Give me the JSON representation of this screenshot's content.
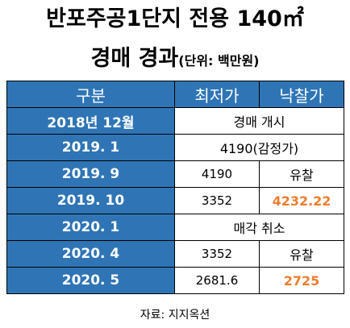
{
  "title": {
    "line1": "반포주공1단지 전용 140㎡",
    "line2_main": "경매 경과",
    "line2_unit": "(단위: 백만원)"
  },
  "table": {
    "headers": [
      "구분",
      "최저가",
      "낙찰가"
    ],
    "rows": [
      {
        "label": "2018년 12월",
        "merged": "경매 개시"
      },
      {
        "label": "2019. 1",
        "merged": "4190(감정가)"
      },
      {
        "label": "2019. 9",
        "min": "4190",
        "bid": "유찰"
      },
      {
        "label": "2019. 10",
        "min": "3352",
        "bid": "4232.22"
      },
      {
        "label": "2020. 1",
        "merged": "매각 취소"
      },
      {
        "label": "2020. 4",
        "min": "3352",
        "bid": "유찰"
      },
      {
        "label": "2020. 5",
        "min": "2681.6",
        "bid": "2725"
      }
    ]
  },
  "source": "자료: 지지옥션",
  "colors": {
    "header_bg": "#2f75b6",
    "highlight": "#ed7d31"
  }
}
